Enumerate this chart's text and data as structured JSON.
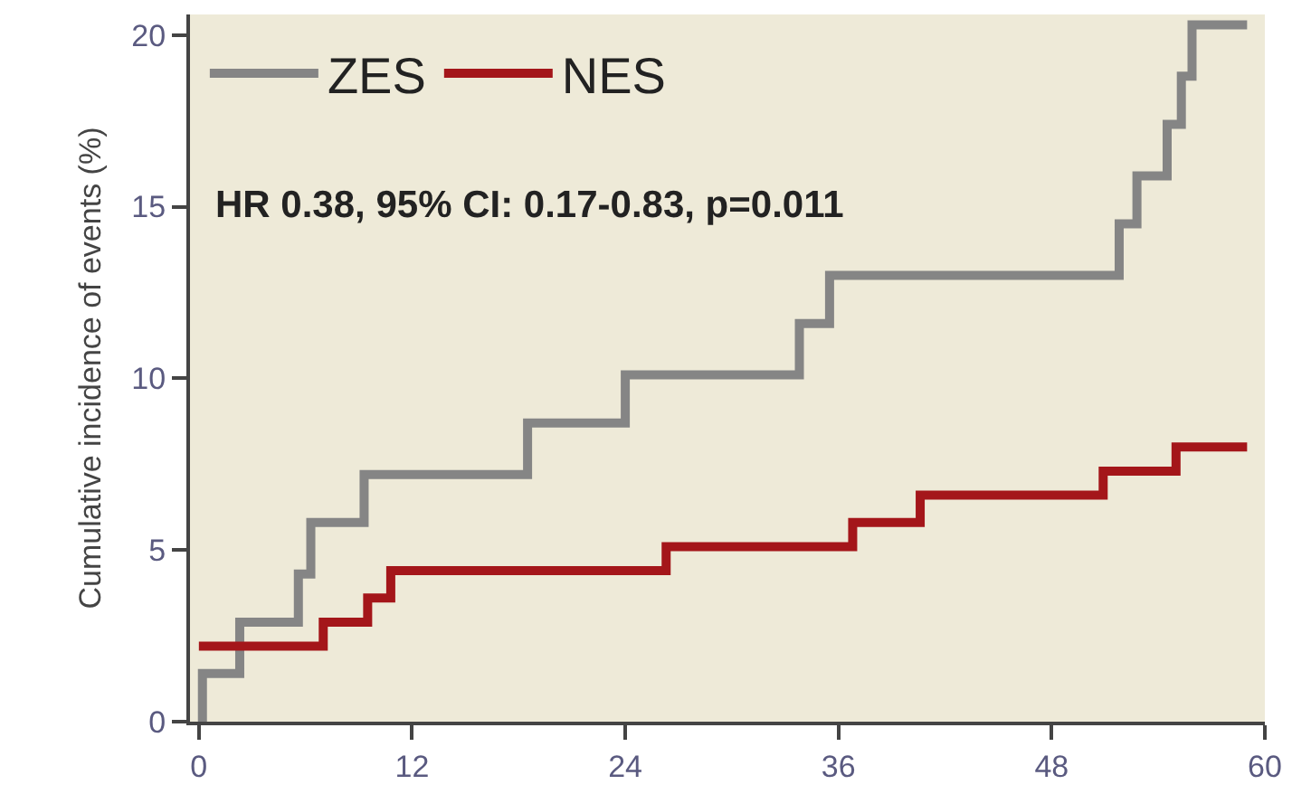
{
  "chart_data": {
    "type": "step",
    "ylabel": "Cumulative incidence of events (%)",
    "series": [
      {
        "name": "ZES",
        "color": "#858585",
        "x": [
          0,
          0.2,
          2.3,
          5.6,
          6.3,
          9.3,
          18.5,
          24,
          33.8,
          35.5,
          51.8,
          52.8,
          54.5,
          55.3,
          55.9,
          59
        ],
        "values": [
          0,
          1.4,
          2.9,
          4.3,
          5.8,
          7.2,
          8.7,
          10.1,
          11.6,
          13.0,
          14.5,
          15.9,
          17.4,
          18.8,
          20.3,
          20.3
        ]
      },
      {
        "name": "NES",
        "color": "#a4161a",
        "x": [
          0,
          7,
          9.5,
          10.8,
          26.3,
          36.8,
          40.6,
          50.9,
          55,
          59
        ],
        "values": [
          2.2,
          2.9,
          3.6,
          4.4,
          5.1,
          5.8,
          6.6,
          7.3,
          8.0,
          8.0
        ]
      }
    ],
    "xlim": [
      -0.5,
      60
    ],
    "xticks": [
      0,
      12,
      24,
      36,
      48,
      60
    ],
    "ylim": [
      0,
      20.6
    ],
    "yticks": [
      0,
      5,
      10,
      15,
      20
    ],
    "annotations": [
      "HR 0.38, 95% CI: 0.17-0.83, p=0.011"
    ],
    "grid": false,
    "legend": "top left",
    "line_style": "solid",
    "marker": "none"
  }
}
